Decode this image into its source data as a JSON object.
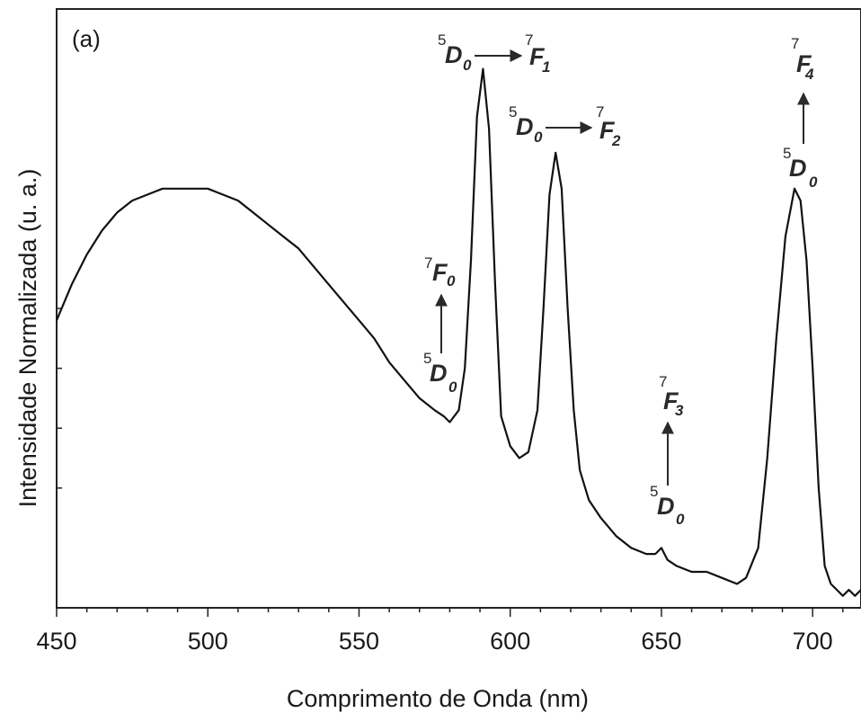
{
  "chart_data": {
    "type": "line",
    "panel_label": "(a)",
    "xlabel": "Comprimento de Onda (nm)",
    "ylabel": "Intensidade Normalizada (u. a.)",
    "xlim": [
      450,
      716
    ],
    "ylim": [
      0,
      1.0
    ],
    "x_ticks": [
      450,
      500,
      550,
      600,
      650,
      700
    ],
    "x_tick_labels": [
      "450",
      "500",
      "550",
      "600",
      "650",
      "700"
    ],
    "y_ticks": [
      0.2,
      0.3,
      0.4,
      0.5
    ],
    "line_color": "#111111",
    "series": [
      {
        "x": [
          450,
          455,
          460,
          465,
          470,
          475,
          480,
          485,
          490,
          495,
          500,
          505,
          510,
          515,
          520,
          525,
          530,
          535,
          540,
          545,
          550,
          555,
          560,
          565,
          570,
          575,
          578,
          580,
          583,
          585,
          587,
          589,
          591,
          593,
          595,
          597,
          600,
          603,
          606,
          609,
          611,
          613,
          615,
          617,
          619,
          621,
          623,
          626,
          630,
          635,
          640,
          645,
          648,
          650,
          652,
          655,
          660,
          665,
          670,
          675,
          678,
          682,
          685,
          688,
          691,
          694,
          696,
          698,
          700,
          702,
          704,
          706,
          708,
          710,
          712,
          714,
          716
        ],
        "values": [
          0.48,
          0.54,
          0.59,
          0.63,
          0.66,
          0.68,
          0.69,
          0.7,
          0.7,
          0.7,
          0.7,
          0.69,
          0.68,
          0.66,
          0.64,
          0.62,
          0.6,
          0.57,
          0.54,
          0.51,
          0.48,
          0.45,
          0.41,
          0.38,
          0.35,
          0.33,
          0.32,
          0.31,
          0.33,
          0.4,
          0.58,
          0.82,
          0.9,
          0.8,
          0.54,
          0.32,
          0.27,
          0.25,
          0.26,
          0.33,
          0.5,
          0.69,
          0.76,
          0.7,
          0.5,
          0.33,
          0.23,
          0.18,
          0.15,
          0.12,
          0.1,
          0.09,
          0.09,
          0.1,
          0.08,
          0.07,
          0.06,
          0.06,
          0.05,
          0.04,
          0.05,
          0.1,
          0.25,
          0.45,
          0.62,
          0.7,
          0.68,
          0.58,
          0.4,
          0.2,
          0.07,
          0.04,
          0.03,
          0.02,
          0.03,
          0.02,
          0.03
        ]
      }
    ]
  },
  "annotations": [
    {
      "id": "d0-f1",
      "text": "5D0→7F1"
    },
    {
      "id": "d0-f2",
      "text": "5D0→7F2"
    },
    {
      "id": "d0-f0",
      "text": "5D0→7F0"
    },
    {
      "id": "d0-f3",
      "text": "5D0→7F3"
    },
    {
      "id": "d0-f4",
      "text": "5D0→7F4"
    }
  ]
}
